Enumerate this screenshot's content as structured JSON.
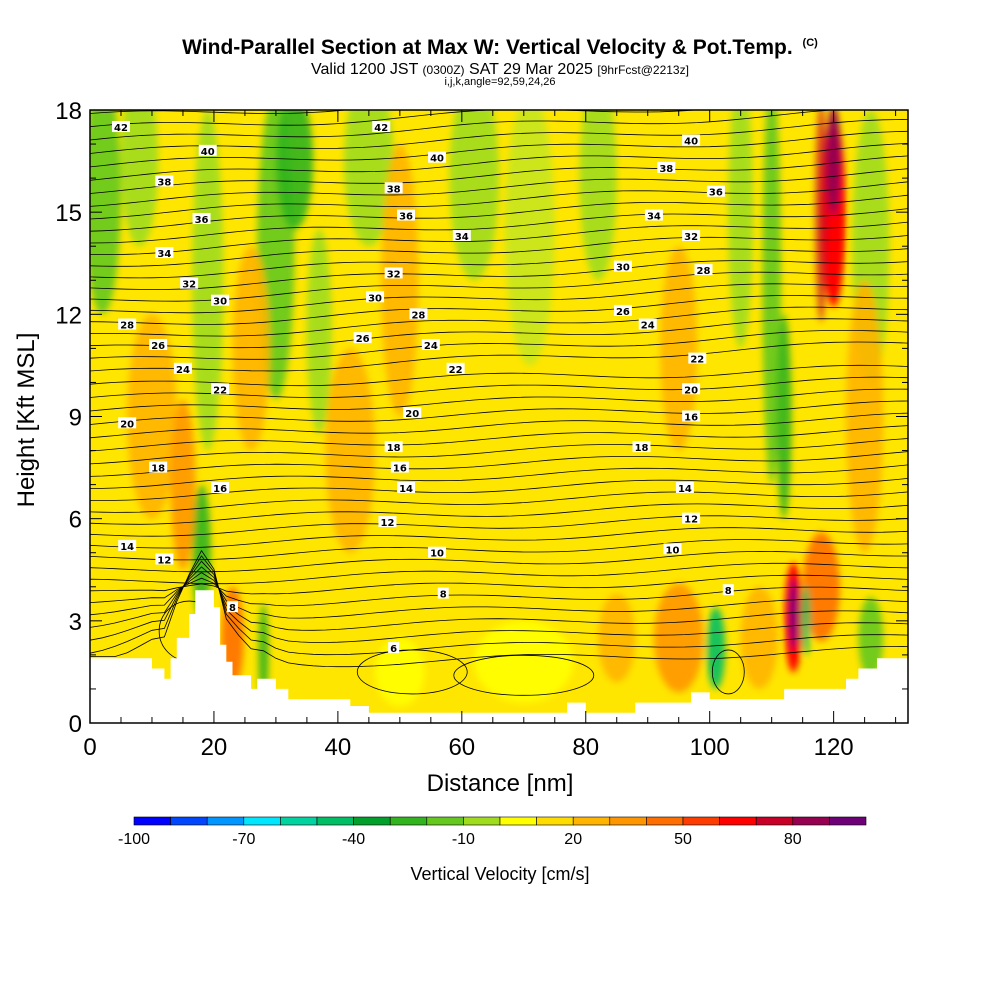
{
  "header": {
    "title": "Wind-Parallel Section at Max W: Vertical Velocity & Pot.Temp.",
    "copyright": "(C)",
    "valid_prefix": "Valid 1200 JST",
    "valid_utc": "(0300Z)",
    "valid_date": "SAT 29 Mar 2025",
    "forecast": "[9hrFcst@2213z]",
    "indices": "i,j,k,angle=92,59,24,26"
  },
  "chart_data": {
    "type": "heatmap",
    "title": "Wind-Parallel Section at Max W: Vertical Velocity & Pot.Temp.",
    "xlabel": "Distance [nm]",
    "ylabel": "Height [Kft MSL]",
    "xlim": [
      0,
      132
    ],
    "ylim": [
      0,
      18
    ],
    "x_ticks": [
      0,
      20,
      40,
      60,
      80,
      100,
      120
    ],
    "y_ticks": [
      0,
      3,
      6,
      9,
      12,
      15,
      18
    ],
    "colorbar": {
      "title": "Vertical Velocity [cm/s]",
      "tick_values": [
        -100,
        -70,
        -40,
        -10,
        20,
        50,
        80
      ],
      "tick_labels": [
        "-100",
        "-70",
        "-40",
        "-10",
        "20",
        "50",
        "80"
      ],
      "levels": [
        -100,
        -90,
        -80,
        -70,
        -60,
        -50,
        -40,
        -30,
        -20,
        -10,
        0,
        10,
        20,
        30,
        40,
        50,
        60,
        70,
        80,
        90
      ],
      "colors": [
        "#0000ff",
        "#0046ff",
        "#0096ff",
        "#00e6ff",
        "#00d2a0",
        "#00be64",
        "#00a02a",
        "#32b41e",
        "#64c81e",
        "#a0dc1e",
        "#ffff00",
        "#ffdc00",
        "#ffb400",
        "#ff9600",
        "#ff6e00",
        "#ff3c00",
        "#ff0000",
        "#c80028",
        "#960050",
        "#6e0078"
      ]
    },
    "isentrope_labels": [
      {
        "x": 5,
        "y": 17.5,
        "v": "42"
      },
      {
        "x": 47,
        "y": 17.5,
        "v": "42"
      },
      {
        "x": 19,
        "y": 16.8,
        "v": "40"
      },
      {
        "x": 56,
        "y": 16.6,
        "v": "40"
      },
      {
        "x": 97,
        "y": 17.1,
        "v": "40"
      },
      {
        "x": 12,
        "y": 15.9,
        "v": "38"
      },
      {
        "x": 49,
        "y": 15.7,
        "v": "38"
      },
      {
        "x": 93,
        "y": 16.3,
        "v": "38"
      },
      {
        "x": 18,
        "y": 14.8,
        "v": "36"
      },
      {
        "x": 51,
        "y": 14.9,
        "v": "36"
      },
      {
        "x": 101,
        "y": 15.6,
        "v": "36"
      },
      {
        "x": 12,
        "y": 13.8,
        "v": "34"
      },
      {
        "x": 60,
        "y": 14.3,
        "v": "34"
      },
      {
        "x": 91,
        "y": 14.9,
        "v": "34"
      },
      {
        "x": 16,
        "y": 12.9,
        "v": "32"
      },
      {
        "x": 49,
        "y": 13.2,
        "v": "32"
      },
      {
        "x": 97,
        "y": 14.3,
        "v": "32"
      },
      {
        "x": 21,
        "y": 12.4,
        "v": "30"
      },
      {
        "x": 46,
        "y": 12.5,
        "v": "30"
      },
      {
        "x": 86,
        "y": 13.4,
        "v": "30"
      },
      {
        "x": 6,
        "y": 11.7,
        "v": "28"
      },
      {
        "x": 53,
        "y": 12.0,
        "v": "28"
      },
      {
        "x": 99,
        "y": 13.3,
        "v": "28"
      },
      {
        "x": 11,
        "y": 11.1,
        "v": "26"
      },
      {
        "x": 44,
        "y": 11.3,
        "v": "26"
      },
      {
        "x": 86,
        "y": 12.1,
        "v": "26"
      },
      {
        "x": 15,
        "y": 10.4,
        "v": "24"
      },
      {
        "x": 55,
        "y": 11.1,
        "v": "24"
      },
      {
        "x": 90,
        "y": 11.7,
        "v": "24"
      },
      {
        "x": 21,
        "y": 9.8,
        "v": "22"
      },
      {
        "x": 59,
        "y": 10.4,
        "v": "22"
      },
      {
        "x": 98,
        "y": 10.7,
        "v": "22"
      },
      {
        "x": 6,
        "y": 8.8,
        "v": "20"
      },
      {
        "x": 52,
        "y": 9.1,
        "v": "20"
      },
      {
        "x": 97,
        "y": 9.8,
        "v": "20"
      },
      {
        "x": 11,
        "y": 7.5,
        "v": "18"
      },
      {
        "x": 49,
        "y": 8.1,
        "v": "18"
      },
      {
        "x": 89,
        "y": 8.1,
        "v": "18"
      },
      {
        "x": 21,
        "y": 6.9,
        "v": "16"
      },
      {
        "x": 50,
        "y": 7.5,
        "v": "16"
      },
      {
        "x": 97,
        "y": 9.0,
        "v": "16"
      },
      {
        "x": 6,
        "y": 5.2,
        "v": "14"
      },
      {
        "x": 51,
        "y": 6.9,
        "v": "14"
      },
      {
        "x": 96,
        "y": 6.9,
        "v": "14"
      },
      {
        "x": 12,
        "y": 4.8,
        "v": "12"
      },
      {
        "x": 48,
        "y": 5.9,
        "v": "12"
      },
      {
        "x": 97,
        "y": 6.0,
        "v": "12"
      },
      {
        "x": 56,
        "y": 5.0,
        "v": "10"
      },
      {
        "x": 94,
        "y": 5.1,
        "v": "10"
      },
      {
        "x": 23,
        "y": 3.4,
        "v": "8"
      },
      {
        "x": 57,
        "y": 3.8,
        "v": "8"
      },
      {
        "x": 103,
        "y": 3.9,
        "v": "8"
      },
      {
        "x": 49,
        "y": 2.2,
        "v": "6"
      }
    ],
    "terrain_top": [
      [
        0,
        1.9
      ],
      [
        2,
        1.9
      ],
      [
        5,
        1.9
      ],
      [
        10,
        1.6
      ],
      [
        12,
        1.3
      ],
      [
        13,
        1.9
      ],
      [
        14,
        2.5
      ],
      [
        16,
        3.2
      ],
      [
        17,
        3.9
      ],
      [
        19,
        3.9
      ],
      [
        20,
        3.4
      ],
      [
        21,
        2.3
      ],
      [
        22,
        1.8
      ],
      [
        23,
        1.4
      ],
      [
        24,
        1.4
      ],
      [
        26,
        1.0
      ],
      [
        27,
        1.3
      ],
      [
        28,
        1.3
      ],
      [
        30,
        1.0
      ],
      [
        32,
        0.7
      ],
      [
        38,
        0.7
      ],
      [
        40,
        0.7
      ],
      [
        42,
        0.5
      ],
      [
        45,
        0.3
      ],
      [
        55,
        0.3
      ],
      [
        75,
        0.3
      ],
      [
        77,
        0.6
      ],
      [
        79,
        0.6
      ],
      [
        80,
        0.3
      ],
      [
        86,
        0.3
      ],
      [
        88,
        0.6
      ],
      [
        96,
        0.6
      ],
      [
        97,
        0.9
      ],
      [
        99,
        0.9
      ],
      [
        100,
        0.7
      ],
      [
        110,
        0.7
      ],
      [
        112,
        1.0
      ],
      [
        116,
        1.0
      ],
      [
        120,
        1.0
      ],
      [
        122,
        1.3
      ],
      [
        124,
        1.6
      ],
      [
        127,
        1.9
      ],
      [
        132,
        1.9
      ]
    ]
  }
}
